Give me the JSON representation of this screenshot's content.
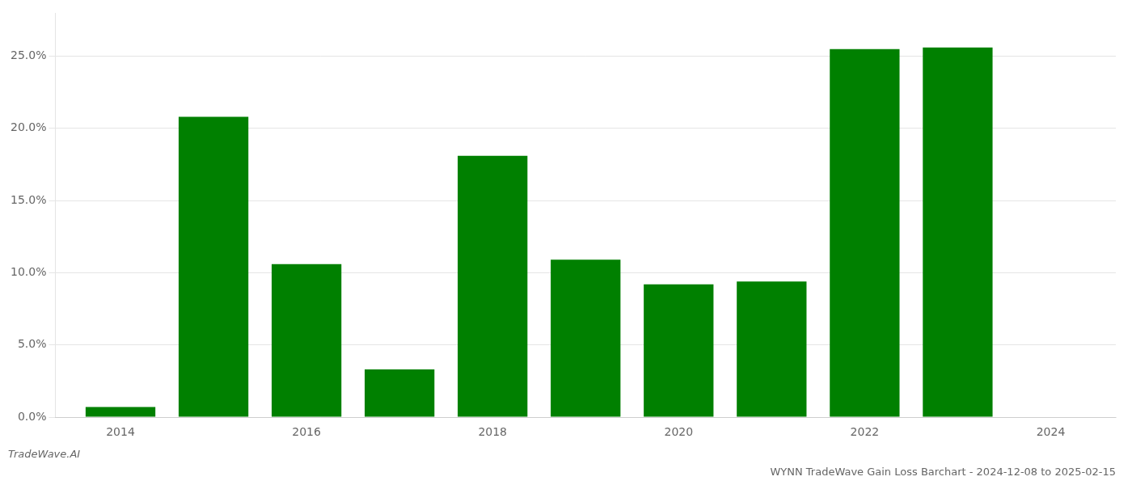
{
  "chart_data": {
    "type": "bar",
    "title": "WYNN TradeWave Gain Loss Barchart - 2024-12-08 to 2025-02-15",
    "annotations": [
      "TradeWave.AI"
    ],
    "x": [
      2014,
      2015,
      2016,
      2017,
      2018,
      2019,
      2020,
      2021,
      2022,
      2023
    ],
    "values": [
      0.007,
      0.208,
      0.106,
      0.033,
      0.181,
      0.109,
      0.092,
      0.094,
      0.255,
      0.256
    ],
    "color": "#008000",
    "xlim": [
      2013.3,
      2024.7
    ],
    "xticks": [
      2014,
      2016,
      2018,
      2020,
      2022,
      2024
    ],
    "ylim": [
      0,
      0.28
    ],
    "yticks": [
      {
        "value": 0.0,
        "label": "0.0%"
      },
      {
        "value": 0.05,
        "label": "5.0%"
      },
      {
        "value": 0.1,
        "label": "10.0%"
      },
      {
        "value": 0.15,
        "label": "15.0%"
      },
      {
        "value": 0.2,
        "label": "20.0%"
      },
      {
        "value": 0.25,
        "label": "25.0%"
      }
    ],
    "grid": "y"
  }
}
